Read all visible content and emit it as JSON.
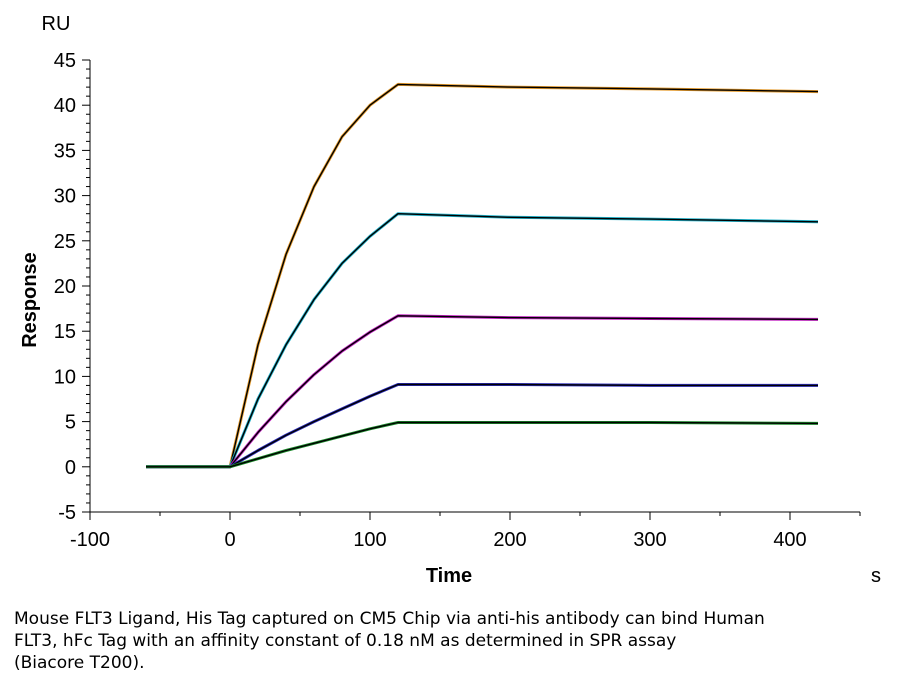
{
  "chart_data": {
    "type": "line",
    "y_unit": "RU",
    "x_unit": "s",
    "xlabel": "Time",
    "ylabel": "Response",
    "xlim": [
      -100,
      450
    ],
    "ylim": [
      -5,
      45
    ],
    "x_ticks": [
      "-100",
      "0",
      "100",
      "200",
      "300",
      "400"
    ],
    "y_ticks": [
      "45",
      "40",
      "35",
      "30",
      "25",
      "20",
      "15",
      "10",
      "5",
      "0",
      "-5"
    ],
    "grid": false,
    "series": [
      {
        "color": "#e59a2a",
        "x": [
          -60,
          0,
          20,
          40,
          60,
          80,
          100,
          120,
          200,
          300,
          420
        ],
        "y": [
          0,
          0,
          13.5,
          23.5,
          31,
          36.5,
          40,
          42.3,
          42,
          41.8,
          41.5
        ]
      },
      {
        "color": "#1fb0c8",
        "x": [
          -60,
          0,
          20,
          40,
          60,
          80,
          100,
          120,
          200,
          300,
          420
        ],
        "y": [
          0,
          0,
          7.5,
          13.5,
          18.5,
          22.5,
          25.5,
          28,
          27.6,
          27.4,
          27.1
        ]
      },
      {
        "color": "#c020c0",
        "x": [
          -60,
          0,
          20,
          40,
          60,
          80,
          100,
          120,
          200,
          300,
          420
        ],
        "y": [
          0,
          0,
          3.8,
          7.2,
          10.2,
          12.8,
          14.9,
          16.7,
          16.5,
          16.4,
          16.3
        ]
      },
      {
        "color": "#2a2ab8",
        "x": [
          -60,
          0,
          20,
          40,
          60,
          80,
          100,
          120,
          200,
          300,
          420
        ],
        "y": [
          0,
          0,
          1.8,
          3.5,
          5,
          6.4,
          7.8,
          9.1,
          9.1,
          9.0,
          9.0
        ]
      },
      {
        "color": "#1a8a2a",
        "x": [
          -60,
          0,
          20,
          40,
          60,
          80,
          100,
          120,
          200,
          300,
          420
        ],
        "y": [
          0,
          0,
          0.9,
          1.8,
          2.6,
          3.4,
          4.2,
          4.9,
          4.9,
          4.9,
          4.8
        ]
      }
    ],
    "fit_color": "#000000"
  },
  "caption": {
    "line1": "Mouse FLT3 Ligand, His Tag captured on CM5 Chip via anti-his antibody can bind Human",
    "line2": "FLT3, hFc Tag with an affinity constant of 0.18 nM as determined in SPR assay",
    "line3": "(Biacore T200)."
  }
}
